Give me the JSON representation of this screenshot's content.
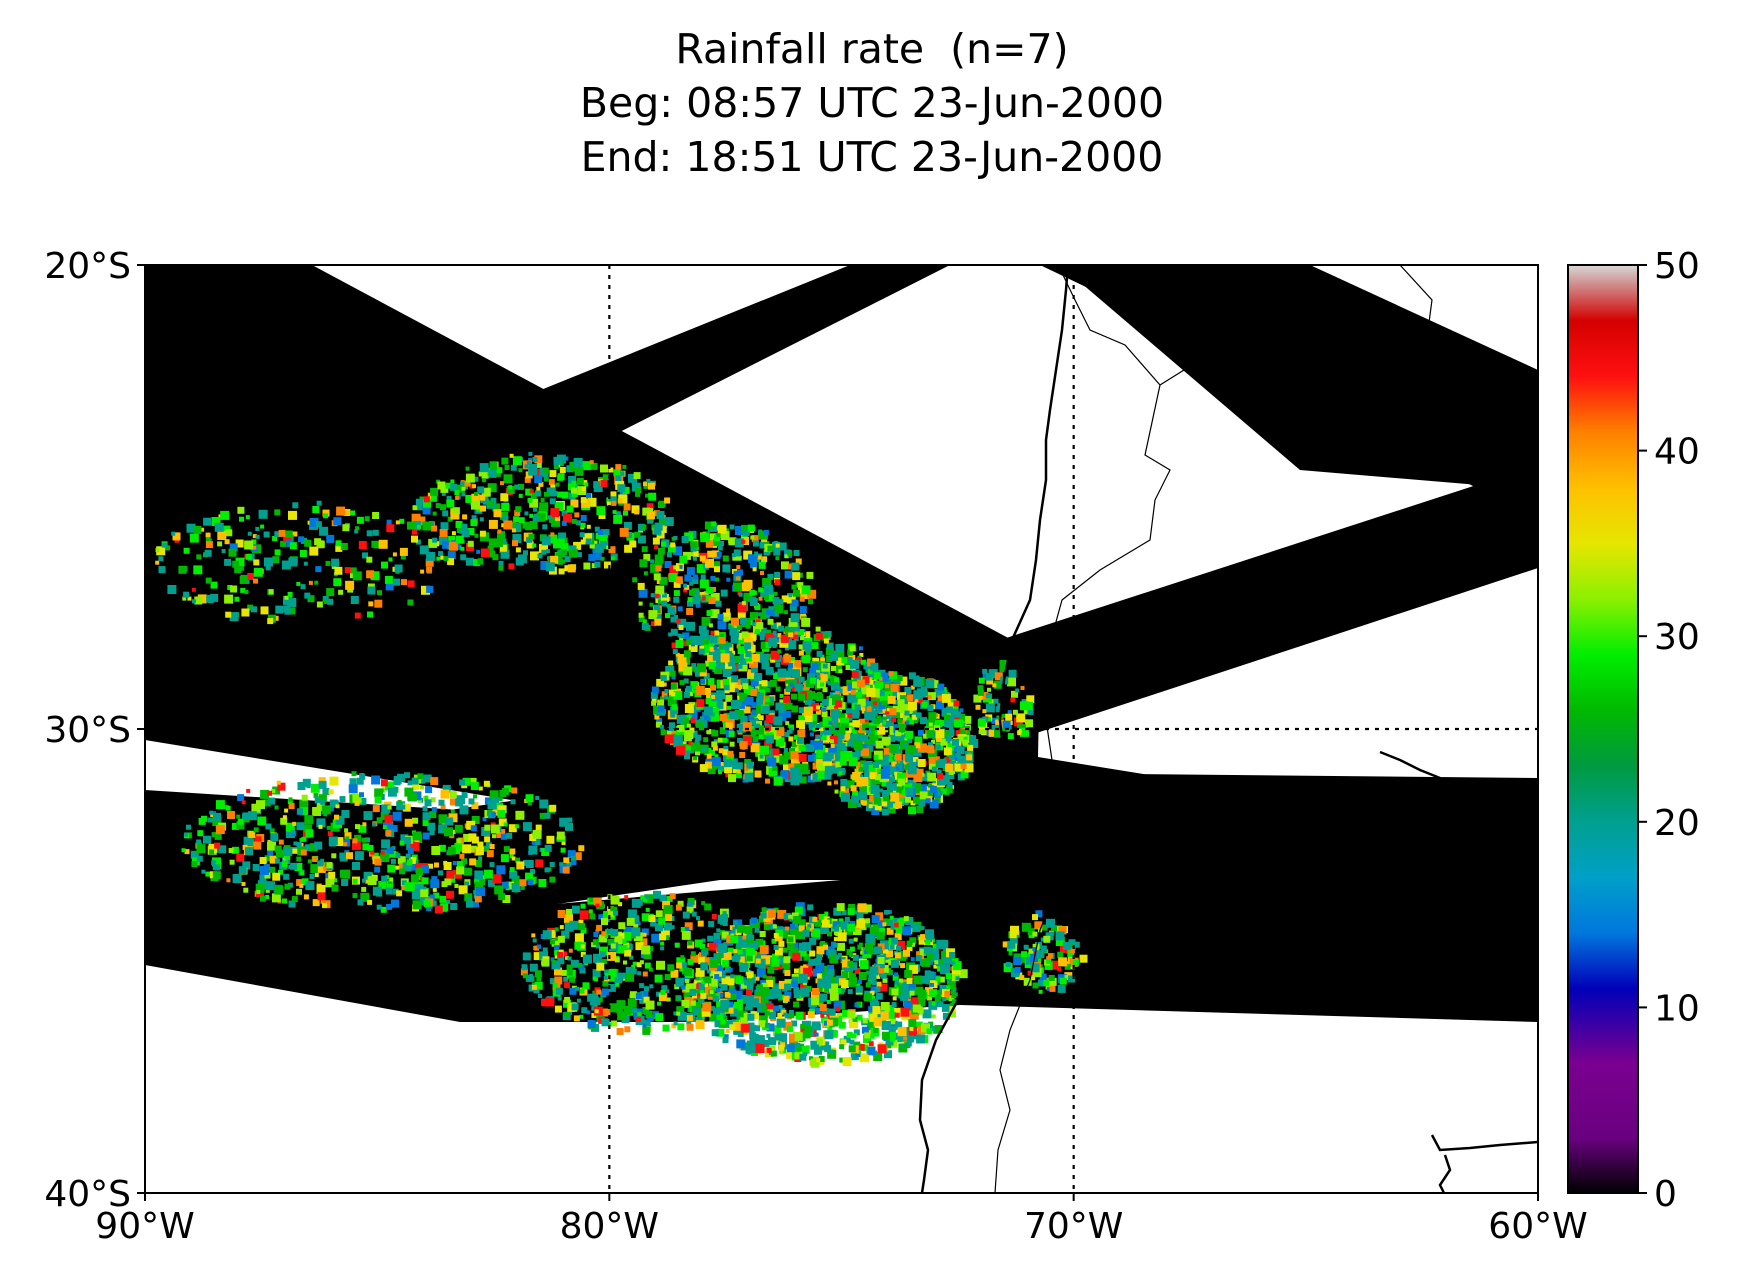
{
  "title": {
    "line1": "Rainfall rate  (n=7)",
    "line2": "Beg: 08:57 UTC 23-Jun-2000",
    "line3": "End: 18:51 UTC 23-Jun-2000"
  },
  "map": {
    "lon_range": [
      -90,
      -60
    ],
    "lat_range": [
      -40,
      -20
    ],
    "gridlines": {
      "lons": [
        -80,
        -70
      ],
      "lats": [
        -30
      ],
      "style": "dotted"
    },
    "lon_ticks": [
      {
        "value": -90,
        "label": "90°W"
      },
      {
        "value": -80,
        "label": "80°W"
      },
      {
        "value": -70,
        "label": "70°W"
      },
      {
        "value": -60,
        "label": "60°W"
      }
    ],
    "lat_ticks": [
      {
        "value": -20,
        "label": "20°S"
      },
      {
        "value": -30,
        "label": "30°S"
      },
      {
        "value": -40,
        "label": "40°S"
      }
    ],
    "swath_color": "#000000",
    "background_color": "#ffffff",
    "coastline_color": "#000000"
  },
  "colorbar": {
    "range": [
      0,
      50
    ],
    "ticks": [
      {
        "value": 0,
        "label": "0"
      },
      {
        "value": 10,
        "label": "10"
      },
      {
        "value": 20,
        "label": "20"
      },
      {
        "value": 30,
        "label": "30"
      },
      {
        "value": 40,
        "label": "40"
      },
      {
        "value": 50,
        "label": "50"
      }
    ],
    "stops": [
      {
        "value": 0,
        "color": "#000000"
      },
      {
        "value": 3,
        "color": "#6a0080"
      },
      {
        "value": 7,
        "color": "#7a0090"
      },
      {
        "value": 11,
        "color": "#0000b8"
      },
      {
        "value": 14,
        "color": "#0077dd"
      },
      {
        "value": 17,
        "color": "#00a0c8"
      },
      {
        "value": 20,
        "color": "#00a090"
      },
      {
        "value": 23,
        "color": "#009a40"
      },
      {
        "value": 26,
        "color": "#00b800"
      },
      {
        "value": 29,
        "color": "#00ee00"
      },
      {
        "value": 32,
        "color": "#8cf000"
      },
      {
        "value": 35,
        "color": "#e6e600"
      },
      {
        "value": 38,
        "color": "#ffc000"
      },
      {
        "value": 41,
        "color": "#ff8000"
      },
      {
        "value": 44,
        "color": "#ff1010"
      },
      {
        "value": 47,
        "color": "#d40000"
      },
      {
        "value": 49,
        "color": "#d09090"
      },
      {
        "value": 50,
        "color": "#d8d8d8"
      }
    ]
  }
}
